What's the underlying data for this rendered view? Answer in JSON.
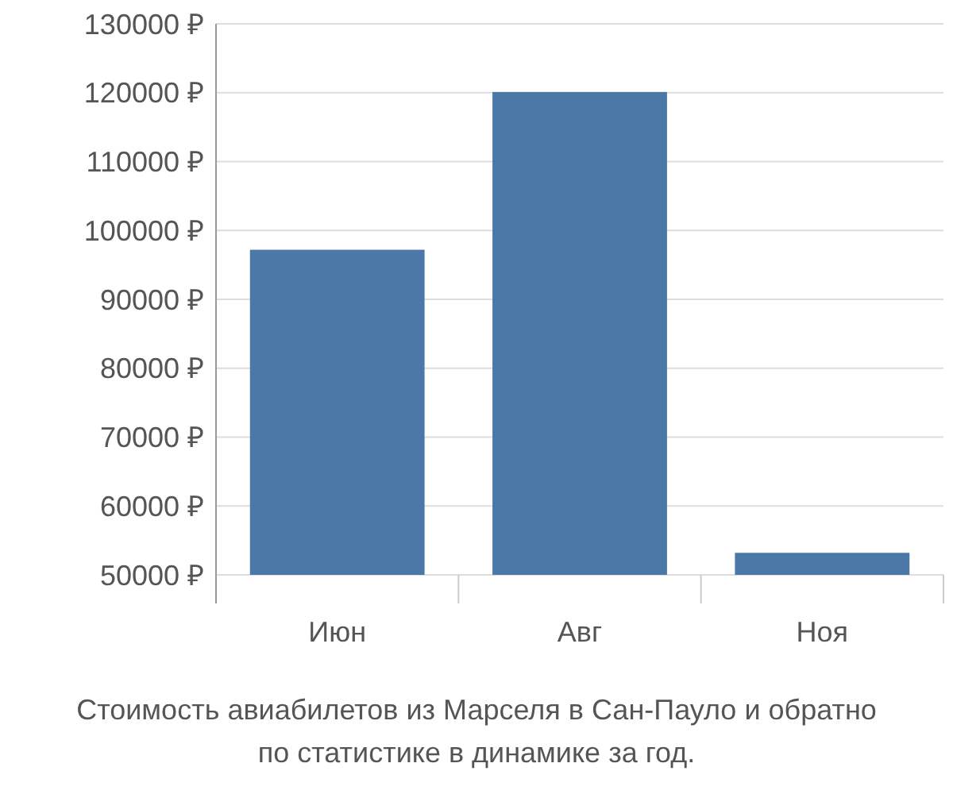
{
  "chart_data": {
    "type": "bar",
    "title": "Стоимость авиабилетов из Марселя в Сан-Пауло и обратно\nпо статистике в динамике за год.",
    "categories": [
      "Июн",
      "Авг",
      "Ноя"
    ],
    "values": [
      97200,
      120100,
      53200
    ],
    "color": "#4c78a8",
    "ylim": [
      50000,
      130000
    ],
    "yticks": [
      {
        "value": 50000,
        "label": "50000 ₽"
      },
      {
        "value": 60000,
        "label": "60000 ₽"
      },
      {
        "value": 70000,
        "label": "70000 ₽"
      },
      {
        "value": 80000,
        "label": "80000 ₽"
      },
      {
        "value": 90000,
        "label": "90000 ₽"
      },
      {
        "value": 100000,
        "label": "100000 ₽"
      },
      {
        "value": 110000,
        "label": "110000 ₽"
      },
      {
        "value": 120000,
        "label": "120000 ₽"
      },
      {
        "value": 130000,
        "label": "130000 ₽"
      }
    ],
    "grid": "y"
  }
}
